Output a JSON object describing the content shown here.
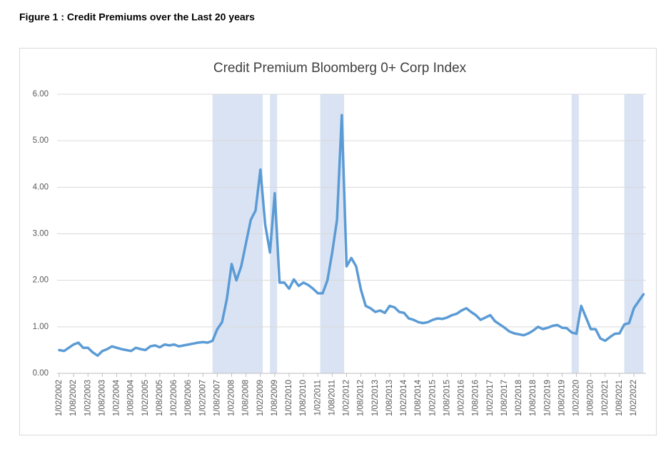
{
  "caption": "Figure 1 : Credit Premiums over the Last 20 years",
  "chart_data": {
    "type": "line",
    "title": "Credit Premium Bloomberg 0+ Corp Index",
    "x": [
      "1/02/2002",
      "1/04/2002",
      "1/06/2002",
      "1/08/2002",
      "1/10/2002",
      "1/12/2002",
      "1/02/2003",
      "1/04/2003",
      "1/06/2003",
      "1/08/2003",
      "1/10/2003",
      "1/12/2003",
      "1/02/2004",
      "1/04/2004",
      "1/06/2004",
      "1/08/2004",
      "1/10/2004",
      "1/12/2004",
      "1/02/2005",
      "1/04/2005",
      "1/06/2005",
      "1/08/2005",
      "1/10/2005",
      "1/12/2005",
      "1/02/2006",
      "1/04/2006",
      "1/06/2006",
      "1/08/2006",
      "1/10/2006",
      "1/12/2006",
      "1/02/2007",
      "1/04/2007",
      "1/06/2007",
      "1/08/2007",
      "1/10/2007",
      "1/12/2007",
      "1/02/2008",
      "1/04/2008",
      "1/06/2008",
      "1/08/2008",
      "1/10/2008",
      "1/12/2008",
      "1/02/2009",
      "1/04/2009",
      "1/06/2009",
      "1/08/2009",
      "1/10/2009",
      "1/12/2009",
      "1/02/2010",
      "1/04/2010",
      "1/06/2010",
      "1/08/2010",
      "1/10/2010",
      "1/12/2010",
      "1/02/2011",
      "1/04/2011",
      "1/06/2011",
      "1/08/2011",
      "1/10/2011",
      "1/12/2011",
      "1/02/2012",
      "1/04/2012",
      "1/06/2012",
      "1/08/2012",
      "1/10/2012",
      "1/12/2012",
      "1/02/2013",
      "1/04/2013",
      "1/06/2013",
      "1/08/2013",
      "1/10/2013",
      "1/12/2013",
      "1/02/2014",
      "1/04/2014",
      "1/06/2014",
      "1/08/2014",
      "1/10/2014",
      "1/12/2014",
      "1/02/2015",
      "1/04/2015",
      "1/06/2015",
      "1/08/2015",
      "1/10/2015",
      "1/12/2015",
      "1/02/2016",
      "1/04/2016",
      "1/06/2016",
      "1/08/2016",
      "1/10/2016",
      "1/12/2016",
      "1/02/2017",
      "1/04/2017",
      "1/06/2017",
      "1/08/2017",
      "1/10/2017",
      "1/12/2017",
      "1/02/2018",
      "1/04/2018",
      "1/06/2018",
      "1/08/2018",
      "1/10/2018",
      "1/12/2018",
      "1/02/2019",
      "1/04/2019",
      "1/06/2019",
      "1/08/2019",
      "1/10/2019",
      "1/12/2019",
      "1/02/2020",
      "1/04/2020",
      "1/06/2020",
      "1/08/2020",
      "1/10/2020",
      "1/12/2020",
      "1/02/2021",
      "1/04/2021",
      "1/06/2021",
      "1/08/2021",
      "1/10/2021",
      "1/12/2021",
      "1/02/2022",
      "1/04/2022",
      "1/06/2022"
    ],
    "series": [
      {
        "color": "#5b9bd5",
        "values": [
          0.5,
          0.48,
          0.55,
          0.62,
          0.66,
          0.55,
          0.55,
          0.45,
          0.38,
          0.48,
          0.52,
          0.58,
          0.55,
          0.52,
          0.5,
          0.48,
          0.55,
          0.52,
          0.5,
          0.58,
          0.6,
          0.56,
          0.62,
          0.6,
          0.62,
          0.58,
          0.6,
          0.62,
          0.64,
          0.66,
          0.67,
          0.66,
          0.7,
          0.95,
          1.1,
          1.6,
          2.35,
          2.0,
          2.3,
          2.8,
          3.3,
          3.5,
          4.38,
          3.2,
          2.6,
          3.87,
          1.95,
          1.95,
          1.82,
          2.02,
          1.88,
          1.95,
          1.9,
          1.82,
          1.72,
          1.72,
          2.0,
          2.6,
          3.3,
          5.55,
          2.3,
          2.48,
          2.3,
          1.8,
          1.45,
          1.4,
          1.32,
          1.35,
          1.3,
          1.45,
          1.42,
          1.32,
          1.3,
          1.18,
          1.15,
          1.1,
          1.08,
          1.1,
          1.15,
          1.18,
          1.17,
          1.2,
          1.25,
          1.28,
          1.35,
          1.4,
          1.32,
          1.25,
          1.15,
          1.2,
          1.25,
          1.12,
          1.05,
          0.98,
          0.9,
          0.86,
          0.84,
          0.82,
          0.86,
          0.92,
          1.0,
          0.95,
          0.98,
          1.02,
          1.04,
          0.98,
          0.97,
          0.88,
          0.85,
          1.45,
          1.2,
          0.95,
          0.95,
          0.75,
          0.7,
          0.78,
          0.85,
          0.86,
          1.05,
          1.08,
          1.4,
          1.55,
          1.7
        ]
      }
    ],
    "shaded_periods": [
      {
        "start": "1/06/2007",
        "end": "1/03/2009"
      },
      {
        "start": "1/06/2009",
        "end": "1/09/2009"
      },
      {
        "start": "1/03/2011",
        "end": "1/01/2012"
      },
      {
        "start": "1/12/2019",
        "end": "1/03/2020"
      },
      {
        "start": "1/10/2021",
        "end": "1/06/2022"
      }
    ],
    "shade_color": "#dae3f3",
    "ylim": [
      0,
      6
    ],
    "yticks": [
      {
        "value": 0,
        "label": "0.00"
      },
      {
        "value": 1,
        "label": "1.00"
      },
      {
        "value": 2,
        "label": "2.00"
      },
      {
        "value": 3,
        "label": "3.00"
      },
      {
        "value": 4,
        "label": "4.00"
      },
      {
        "value": 5,
        "label": "5.00"
      },
      {
        "value": 6,
        "label": "6.00"
      }
    ],
    "xticks": [
      "1/02/2002",
      "1/08/2002",
      "1/02/2003",
      "1/08/2003",
      "1/02/2004",
      "1/08/2004",
      "1/02/2005",
      "1/08/2005",
      "1/02/2006",
      "1/08/2006",
      "1/02/2007",
      "1/08/2007",
      "1/02/2008",
      "1/08/2008",
      "1/02/2009",
      "1/08/2009",
      "1/02/2010",
      "1/08/2010",
      "1/02/2011",
      "1/08/2011",
      "1/02/2012",
      "1/08/2012",
      "1/02/2013",
      "1/08/2013",
      "1/02/2014",
      "1/08/2014",
      "1/02/2015",
      "1/08/2015",
      "1/02/2016",
      "1/08/2016",
      "1/02/2017",
      "1/08/2017",
      "1/02/2018",
      "1/08/2018",
      "1/02/2019",
      "1/08/2019",
      "1/02/2020",
      "1/08/2020",
      "1/02/2021",
      "1/08/2021",
      "1/02/2022"
    ],
    "grid": true
  }
}
